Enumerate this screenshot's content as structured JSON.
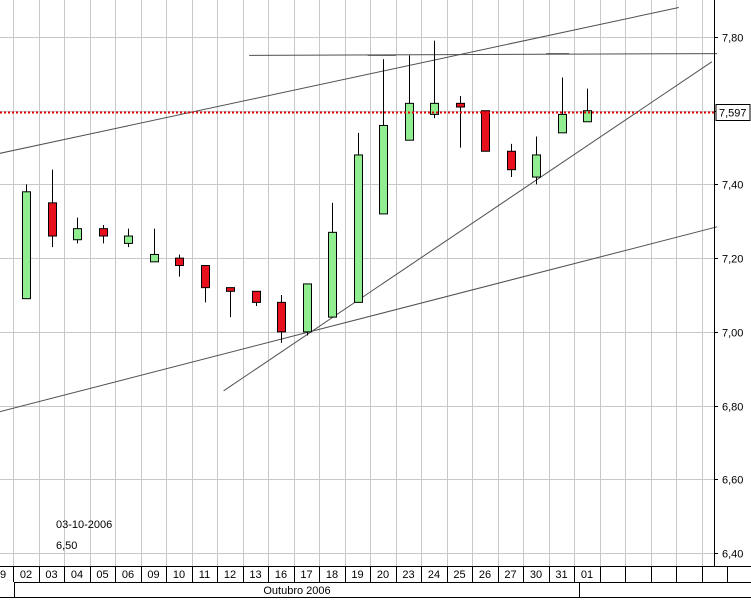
{
  "chart_data": {
    "type": "candlestick",
    "month_label": "Outubro 2006",
    "first_tick_partial": "9",
    "categories": [
      "02",
      "03",
      "04",
      "05",
      "06",
      "09",
      "10",
      "11",
      "12",
      "13",
      "16",
      "17",
      "18",
      "19",
      "20",
      "23",
      "24",
      "25",
      "26",
      "27",
      "30",
      "31",
      "01"
    ],
    "candles": [
      {
        "date": "02",
        "open": 7.09,
        "high": 7.4,
        "low": 7.09,
        "close": 7.38
      },
      {
        "date": "03",
        "open": 7.35,
        "high": 7.44,
        "low": 7.23,
        "close": 7.26
      },
      {
        "date": "04",
        "open": 7.25,
        "high": 7.31,
        "low": 7.24,
        "close": 7.28
      },
      {
        "date": "05",
        "open": 7.28,
        "high": 7.29,
        "low": 7.24,
        "close": 7.26
      },
      {
        "date": "06",
        "open": 7.24,
        "high": 7.28,
        "low": 7.23,
        "close": 7.26
      },
      {
        "date": "09",
        "open": 7.19,
        "high": 7.28,
        "low": 7.19,
        "close": 7.21
      },
      {
        "date": "10",
        "open": 7.2,
        "high": 7.21,
        "low": 7.15,
        "close": 7.18
      },
      {
        "date": "11",
        "open": 7.18,
        "high": 7.18,
        "low": 7.08,
        "close": 7.12
      },
      {
        "date": "12",
        "open": 7.12,
        "high": 7.12,
        "low": 7.04,
        "close": 7.11
      },
      {
        "date": "13",
        "open": 7.11,
        "high": 7.11,
        "low": 7.07,
        "close": 7.08
      },
      {
        "date": "16",
        "open": 7.08,
        "high": 7.1,
        "low": 6.97,
        "close": 7.0
      },
      {
        "date": "17",
        "open": 7.0,
        "high": 7.13,
        "low": 6.99,
        "close": 7.13
      },
      {
        "date": "18",
        "open": 7.04,
        "high": 7.35,
        "low": 7.04,
        "close": 7.27
      },
      {
        "date": "19",
        "open": 7.08,
        "high": 7.54,
        "low": 7.08,
        "close": 7.48
      },
      {
        "date": "20",
        "open": 7.32,
        "high": 7.74,
        "low": 7.32,
        "close": 7.56
      },
      {
        "date": "23",
        "open": 7.52,
        "high": 7.75,
        "low": 7.52,
        "close": 7.62
      },
      {
        "date": "24",
        "open": 7.59,
        "high": 7.79,
        "low": 7.58,
        "close": 7.62
      },
      {
        "date": "25",
        "open": 7.62,
        "high": 7.64,
        "low": 7.5,
        "close": 7.61
      },
      {
        "date": "26",
        "open": 7.6,
        "high": 7.6,
        "low": 7.49,
        "close": 7.49
      },
      {
        "date": "27",
        "open": 7.49,
        "high": 7.51,
        "low": 7.42,
        "close": 7.44
      },
      {
        "date": "30",
        "open": 7.42,
        "high": 7.53,
        "low": 7.4,
        "close": 7.48
      },
      {
        "date": "31",
        "open": 7.54,
        "high": 7.69,
        "low": 7.54,
        "close": 7.59
      },
      {
        "date": "01",
        "open": 7.57,
        "high": 7.66,
        "low": 7.57,
        "close": 7.6
      }
    ],
    "y_ticks": [
      "6,40",
      "6,60",
      "6,80",
      "7,00",
      "7,20",
      "7,40",
      "7,60",
      "7,80"
    ],
    "ylim": [
      6.35,
      7.86
    ],
    "last_price": 7.597,
    "last_price_label": "7,597",
    "colors": {
      "up": "#90ee90",
      "down": "#e8101c",
      "last_price_line": "#e00000",
      "grid": "#c8c8c8",
      "trendline": "#505050"
    },
    "grid": true
  },
  "info": {
    "date": "03-10-2006",
    "value": "6,50"
  }
}
